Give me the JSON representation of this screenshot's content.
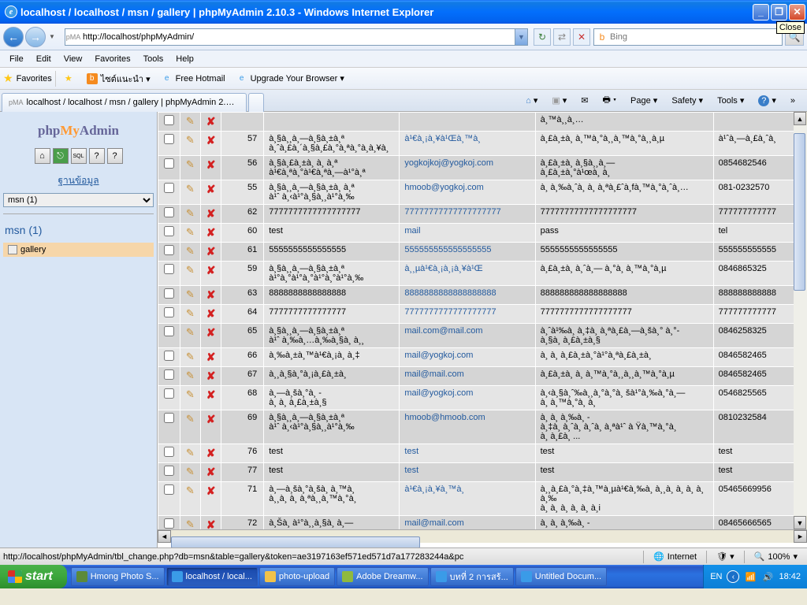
{
  "window": {
    "title": "localhost / localhost / msn / gallery | phpMyAdmin 2.10.3 - Windows Internet Explorer",
    "close_tip": "Close"
  },
  "address": {
    "url": "http://localhost/phpMyAdmin/",
    "favicon": "pMA",
    "search_placeholder": "Bing"
  },
  "menu": {
    "file": "File",
    "edit": "Edit",
    "view": "View",
    "favorites": "Favorites",
    "tools": "Tools",
    "help": "Help"
  },
  "favbar": {
    "favorites": "Favorites",
    "item1": "ไซต์แนะนำ ▾",
    "item2": "Free Hotmail",
    "item3": "Upgrade Your Browser ▾"
  },
  "tab": {
    "title": "localhost / localhost / msn / gallery | phpMyAdmin 2.10.3"
  },
  "cmdbar": {
    "page": "Page ▾",
    "safety": "Safety ▾",
    "tools": "Tools ▾"
  },
  "sidebar": {
    "dbhead": "ฐานข้อมูล",
    "dbsel": "msn (1)",
    "dblink": "msn (1)",
    "table": "gallery"
  },
  "rows": [
    {
      "cls": "odd",
      "id": "",
      "c1": "",
      "c2": "",
      "c3": "à¸™à¸¸à¸…",
      "c4": ""
    },
    {
      "cls": "even",
      "id": "57",
      "c1": "à¸§à¸¸à¸—à¸§à¸±à¸ª\nà¸ˆà¸£à¸´à¸§à¸£à¸°à¸ªà¸°à¸à¸¥à¸",
      "c2": "à¹€à¸¡à¸¥à¹Œà¸™à¸ ",
      "c3": "à¸£à¸±à¸ à¸™à¸°à¸¸à¸™à¸°à¸¸à¸µ",
      "c4": "à¹ˆà¸—à¸£à¸ˆà¸ "
    },
    {
      "cls": "odd",
      "id": "56",
      "c1": "à¸§à¸£à¸±à¸ à¸ à¸ª\nà¹€à¸ªà¸°à¹€à¸ªà¸—à¹°à¸ª",
      "c2": "yogkojkoj@yogkoj.com",
      "c3": "à¸£à¸±à¸ à¸§à¸¸à¸—\nà¸£à¸±à¸°à¹œà¸ à¸ ",
      "c4": "0854682546"
    },
    {
      "cls": "even",
      "id": "55",
      "c1": "à¸§à¸¸à¸—à¸§à¸±à¸ à¸ª\nà¹ˆ à¸‹à¹°à¸§à¸¸à¹°à¸‰",
      "c2": "hmoob@yogkoj.com",
      "c3": "à¸ à¸‰à¸ˆà¸ à¸ à¸ªà¸£ˆà¸fà¸™à¸°à¸ˆà¸…",
      "c4": "081-0232570"
    },
    {
      "cls": "odd",
      "id": "62",
      "c1": "7777777777777777777",
      "c2": "77777777777777777777",
      "c3": "77777777777777777777",
      "c4": "777777777777"
    },
    {
      "cls": "even",
      "id": "60",
      "c1": "test",
      "c2": "mail",
      "c3": "pass",
      "c4": "tel"
    },
    {
      "cls": "odd",
      "id": "61",
      "c1": "5555555555555555",
      "c2": "555555555555555555",
      "c3": "5555555555555555",
      "c4": "555555555555"
    },
    {
      "cls": "even",
      "id": "59",
      "c1": "à¸§à¸¸à¸—à¸§à¸±à¸ª\nà¹°à¸°à¹°à¸°à¹°à¸°à¹°à¸‰",
      "c2": "à¸¸µà¹€à¸¡à¸¡à¸¥à¹Œ",
      "c3": "à¸£à¸±à¸ à¸ˆà¸— à¸°à¸ à¸™à¸°à¸µ",
      "c4": "0846865325"
    },
    {
      "cls": "odd",
      "id": "63",
      "c1": "8888888888888888",
      "c2": "8888888888888888888",
      "c3": "888888888888888888",
      "c4": "888888888888"
    },
    {
      "cls": "even",
      "id": "64",
      "c1": "7777777777777777",
      "c2": "7777777777777777777",
      "c3": "7777777777777777777",
      "c4": "777777777777"
    },
    {
      "cls": "odd",
      "id": "65",
      "c1": "à¸§à¸¸à¸—à¸§à¸±à¸ª\nà¹ˆ à¸‰à¸…à¸‰à¸§à¸ à¸¸",
      "c2": "mail.com@mail.com",
      "c3": "à¸ˆà¹‰à¸ à¸‡à¸ à¸ªà¸£à¸—à¸šà¸° à¸°-\nà¸§à¸ à¸£à¸±à¸§",
      "c4": "0846258325"
    },
    {
      "cls": "even",
      "id": "66",
      "c1": "à¸‰à¸±à¸™à¹€à¸¡à¸ à¸‡",
      "c2": "mail@yogkoj.com",
      "c3": "à¸ à¸ à¸£à¸±à¸°à¹°à¸ªà¸£à¸±à¸ ",
      "c4": "0846582465"
    },
    {
      "cls": "odd",
      "id": "67",
      "c1": "à¸¸à¸§à¸°à¸¡à¸£à¸±à¸ ",
      "c2": "mail@mail.com",
      "c3": "à¸£à¸±à¸ à¸ à¸™à¸°à¸¸à¸¸à¸™à¸°à¸µ",
      "c4": "0846582465"
    },
    {
      "cls": "even",
      "id": "68",
      "c1": "à¸—à¸šà¸°à¸ -\nà¸ à¸ à¸£à¸±à¸§",
      "c2": "mail@yogkoj.com",
      "c3": "à¸‹à¸§à¸ˆ‰à¸¸à¸°à¸°à¸ šà¹°à¸‰à¸°à¸—\nà¸ à¸™à¸°à¸ à¸ ",
      "c4": "0546825565"
    },
    {
      "cls": "odd",
      "id": "69",
      "c1": "à¸§à¸¸à¸—à¸§à¸±à¸ª\nà¹ˆ à¸‹à¹°à¸§à¸¸à¹°à¸‰",
      "c2": "hmoob@hmoob.com",
      "c3": "à¸ à¸ à¸‰à¸ -\nà¸‡à¸ à¸ˆà¸ à¸ˆà¸ à¸ªà¹ˆ à Ÿà¸™à¸°à¸ \nà¸ à¸£à¸ ...",
      "c4": "0810232584"
    },
    {
      "cls": "even",
      "id": "76",
      "c1": "test",
      "c2": "test",
      "c3": "test",
      "c4": "test"
    },
    {
      "cls": "odd",
      "id": "77",
      "c1": "test",
      "c2": "test",
      "c3": "test",
      "c4": "test"
    },
    {
      "cls": "even",
      "id": "71",
      "c1": "à¸—à¸šà¸°à¸šà¸ à¸™à¸ \nà¸¸à¸ à¸ à¸ªà¸¸à¸™à¸°à¸ ",
      "c2": "à¹€à¸¡à¸¥à¸™à¸ ",
      "c3": "à¸¸à¸£à¸°à¸‡à¸™à¸µà¹€à¸‰à¸ à¸¸à¸ à¸ à¸ à¸ à¸‰\nà¸ à¸ à¸ à¸ à¸ à¸i",
      "c4": "05465669956"
    },
    {
      "cls": "odd",
      "id": "72",
      "c1": "à¸Šà¸ à¹°à¸¸à¸§à¸ à¸—",
      "c2": "mail@mail.com",
      "c3": "à¸ à¸ à¸‰à¸ -",
      "c4": "08465666565"
    }
  ],
  "status": {
    "url": "http://localhost/phpMyAdmin/tbl_change.php?db=msn&table=gallery&token=ae3197163ef571ed571d7a177283244a&pc",
    "zone": "Internet",
    "zoom": "100%"
  },
  "taskbar": {
    "start": "start",
    "items": [
      {
        "label": "Hmong Photo S...",
        "icon": "#5c8a3a"
      },
      {
        "label": "localhost / local...",
        "icon": "#3a9be8",
        "active": true
      },
      {
        "label": "photo-upload",
        "icon": "#f0c24a"
      },
      {
        "label": "Adobe Dreamw...",
        "icon": "#8fb93e"
      },
      {
        "label": "บทที่ 2 การสร้...",
        "icon": "#3a9be8"
      },
      {
        "label": "Untitled Docum...",
        "icon": "#3a9be8"
      }
    ],
    "lang": "EN",
    "time": "18:42"
  }
}
